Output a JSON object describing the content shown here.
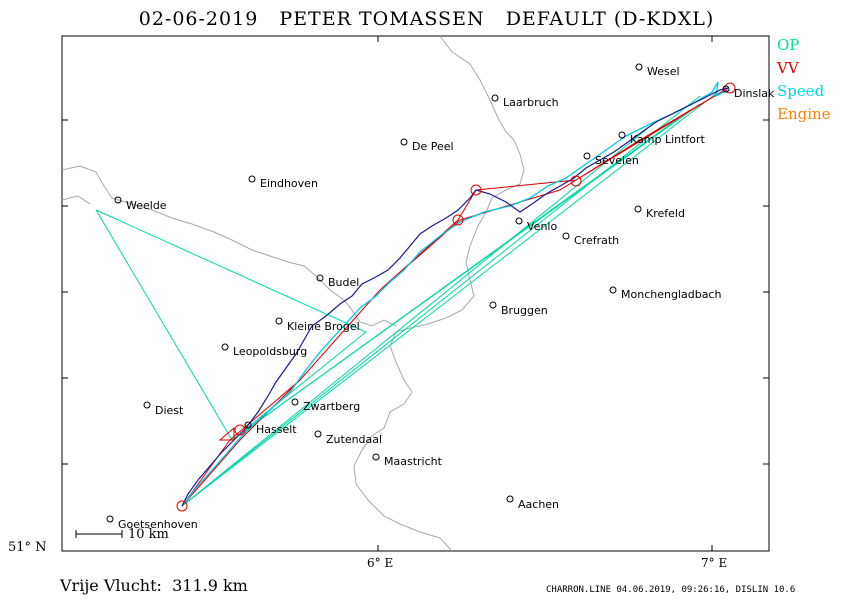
{
  "header": {
    "date": "02-06-2019",
    "pilot": "PETER TOMASSEN",
    "class": "DEFAULT",
    "registration": "(D-KDXL)"
  },
  "legend": [
    {
      "label": "OP",
      "color": "#00e0a0"
    },
    {
      "label": "VV",
      "color": "#e00000"
    },
    {
      "label": "Speed",
      "color": "#00d8f0"
    },
    {
      "label": "Engine",
      "color": "#ff8000"
    }
  ],
  "map": {
    "lat_label": "51° N",
    "lon_labels": [
      "6° E",
      "7° E"
    ],
    "scale_bar_label": "10 km",
    "cities": [
      {
        "name": "Wesel"
      },
      {
        "name": "Dinslak"
      },
      {
        "name": "Laarbruch"
      },
      {
        "name": "Kamp Lintfort"
      },
      {
        "name": "De Peel"
      },
      {
        "name": "Sevelen"
      },
      {
        "name": "Eindhoven"
      },
      {
        "name": "Weelde"
      },
      {
        "name": "Venlo"
      },
      {
        "name": "Krefeld"
      },
      {
        "name": "Crefrath"
      },
      {
        "name": "Budel"
      },
      {
        "name": "Monchengladbach"
      },
      {
        "name": "Kleine Brogel"
      },
      {
        "name": "Bruggen"
      },
      {
        "name": "Leopoldsburg"
      },
      {
        "name": "Zwartberg"
      },
      {
        "name": "Diest"
      },
      {
        "name": "Hasselt"
      },
      {
        "name": "Zutendaal"
      },
      {
        "name": "Maastricht"
      },
      {
        "name": "Aachen"
      },
      {
        "name": "Goetsenhoven"
      }
    ]
  },
  "summary": {
    "label": "Vrije Vlucht:",
    "value": "311.9 km"
  },
  "footer": {
    "text": "CHARRON.LINE 04.06.2019, 09:26:16, DISLIN 10.6"
  }
}
